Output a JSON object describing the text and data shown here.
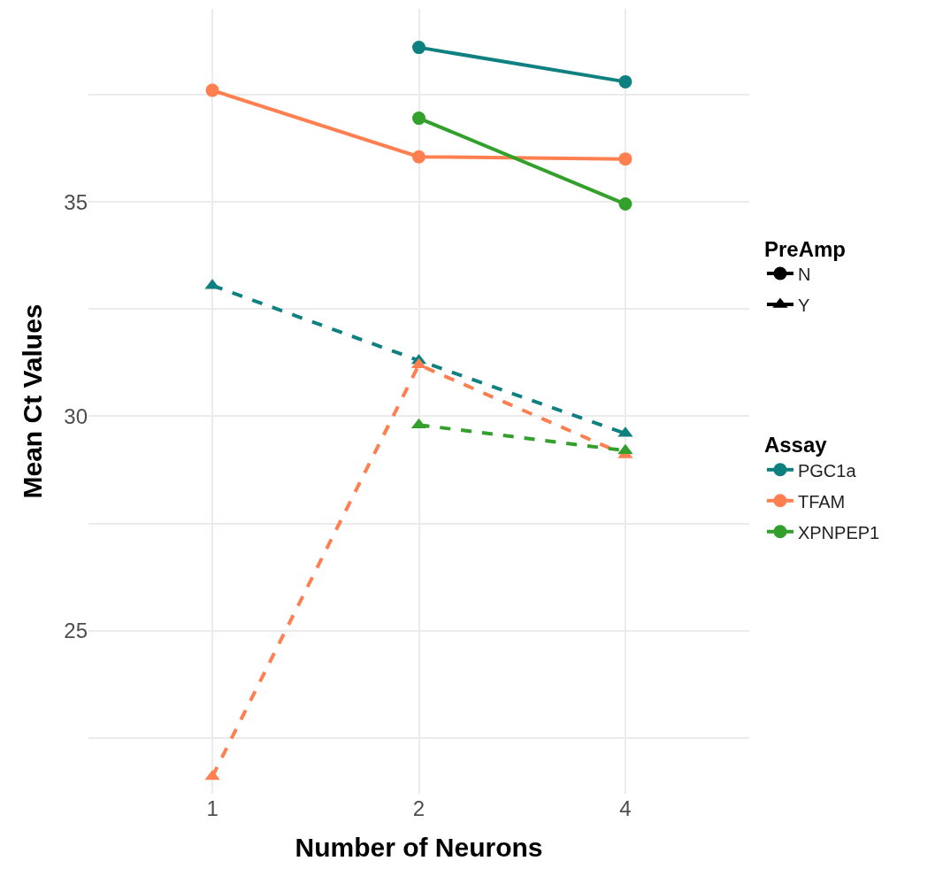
{
  "chart_data": {
    "type": "line",
    "xlabel": "Number of Neurons",
    "ylabel": "Mean Ct Values",
    "legend_title": [
      "PreAmp",
      "Assay"
    ],
    "categories": [
      "1",
      "2",
      "4"
    ],
    "ylim": [
      21.2,
      39.5
    ],
    "yticks": [
      {
        "value": 22.5,
        "label": null
      },
      25,
      {
        "value": 27.5,
        "label": null
      },
      30,
      {
        "value": 32.5,
        "label": null
      },
      35,
      {
        "value": 37.5,
        "label": null
      }
    ],
    "grid": true,
    "legend": "right",
    "series": [
      {
        "name": "N",
        "color": "#000000",
        "marker": "circle",
        "line_style": "solid",
        "values": [
          null,
          null,
          null
        ]
      },
      {
        "name": "Y",
        "color": "#000000",
        "marker": "triangle",
        "line_style": "solid",
        "values": [
          null,
          null,
          null
        ]
      },
      {
        "name": "PGC1a",
        "color": "#0e8080",
        "marker": "circle",
        "line_style": "solid",
        "values": [
          null,
          38.6,
          37.8
        ]
      },
      {
        "name": "TFAM",
        "color": "#ff7f50",
        "marker": "circle",
        "line_style": "solid",
        "values": [
          37.6,
          36.05,
          36.0
        ]
      },
      {
        "name": "XPNPEP1",
        "color": "#33a02c",
        "marker": "circle",
        "line_style": "solid",
        "values": [
          null,
          36.95,
          34.95
        ]
      },
      {
        "color": "#0e8080",
        "marker": "triangle",
        "line_style": "dashed",
        "values": [
          33.05,
          31.3,
          29.6
        ]
      },
      {
        "color": "#ff7f50",
        "marker": "triangle",
        "line_style": "dashed",
        "values": [
          21.6,
          31.2,
          29.1
        ]
      },
      {
        "color": "#33a02c",
        "marker": "triangle",
        "line_style": "dashed",
        "values": [
          null,
          29.8,
          29.2
        ]
      }
    ]
  }
}
